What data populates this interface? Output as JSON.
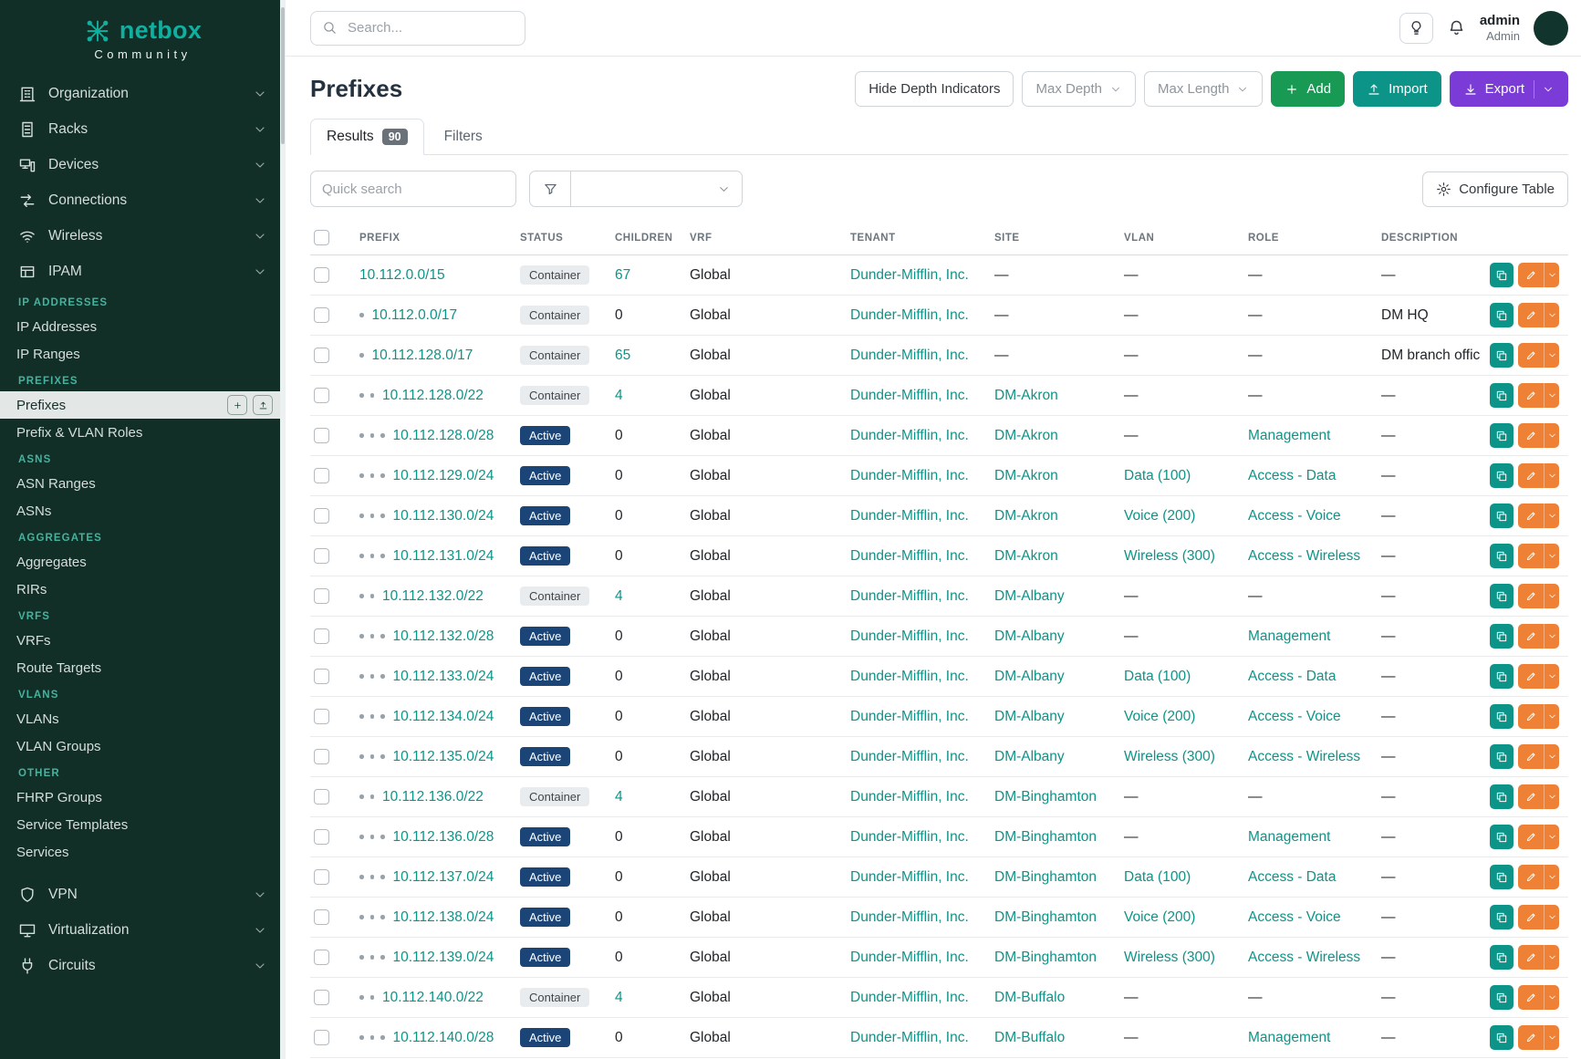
{
  "brand": {
    "name": "netbox",
    "subtitle": "Community"
  },
  "colors": {
    "sidebar_bg": "#112e27",
    "accent_teal": "#0d9488",
    "brand_teal": "#10b0a0",
    "add_green": "#189a54",
    "import_teal": "#0d9488",
    "export_purple": "#7a3bd6",
    "active_badge": "#1b4577",
    "container_badge_bg": "#e9ecef",
    "edit_orange": "#ee8135",
    "section_heading_teal": "#45b39e"
  },
  "topbar": {
    "search_placeholder": "Search...",
    "user": {
      "name": "admin",
      "role": "Admin"
    }
  },
  "sidebar": {
    "top_items": [
      {
        "label": "Organization",
        "icon": "building"
      },
      {
        "label": "Racks",
        "icon": "rack"
      },
      {
        "label": "Devices",
        "icon": "device"
      },
      {
        "label": "Connections",
        "icon": "connections"
      },
      {
        "label": "Wireless",
        "icon": "wifi"
      },
      {
        "label": "IPAM",
        "icon": "ipam"
      }
    ],
    "sections": [
      {
        "heading": "IP ADDRESSES",
        "items": [
          {
            "label": "IP Addresses"
          },
          {
            "label": "IP Ranges"
          }
        ]
      },
      {
        "heading": "PREFIXES",
        "items": [
          {
            "label": "Prefixes",
            "active": true
          },
          {
            "label": "Prefix & VLAN Roles"
          }
        ]
      },
      {
        "heading": "ASNS",
        "items": [
          {
            "label": "ASN Ranges"
          },
          {
            "label": "ASNs"
          }
        ]
      },
      {
        "heading": "AGGREGATES",
        "items": [
          {
            "label": "Aggregates"
          },
          {
            "label": "RIRs"
          }
        ]
      },
      {
        "heading": "VRFS",
        "items": [
          {
            "label": "VRFs"
          },
          {
            "label": "Route Targets"
          }
        ]
      },
      {
        "heading": "VLANS",
        "items": [
          {
            "label": "VLANs"
          },
          {
            "label": "VLAN Groups"
          }
        ]
      },
      {
        "heading": "OTHER",
        "items": [
          {
            "label": "FHRP Groups"
          },
          {
            "label": "Service Templates"
          },
          {
            "label": "Services"
          }
        ]
      }
    ],
    "bottom_items": [
      {
        "label": "VPN",
        "icon": "shield"
      },
      {
        "label": "Virtualization",
        "icon": "monitor"
      },
      {
        "label": "Circuits",
        "icon": "plug"
      }
    ]
  },
  "page": {
    "title": "Prefixes",
    "buttons": {
      "hide_depth": "Hide Depth Indicators",
      "max_depth": "Max Depth",
      "max_length": "Max Length",
      "add": "Add",
      "import": "Import",
      "export": "Export"
    },
    "tabs": [
      {
        "label": "Results",
        "badge": "90"
      },
      {
        "label": "Filters"
      }
    ],
    "quick_search_placeholder": "Quick search",
    "configure_table": "Configure Table"
  },
  "table": {
    "columns": [
      "PREFIX",
      "STATUS",
      "CHILDREN",
      "VRF",
      "TENANT",
      "SITE",
      "VLAN",
      "ROLE",
      "DESCRIPTION"
    ],
    "rows": [
      {
        "depth": 0,
        "prefix": "10.112.0.0/15",
        "status": "Container",
        "children": "67",
        "vrf": "Global",
        "tenant": "Dunder-Mifflin, Inc.",
        "site": "—",
        "vlan": "—",
        "role": "—",
        "description": "—"
      },
      {
        "depth": 1,
        "prefix": "10.112.0.0/17",
        "status": "Container",
        "children": "0",
        "vrf": "Global",
        "tenant": "Dunder-Mifflin, Inc.",
        "site": "—",
        "vlan": "—",
        "role": "—",
        "description": "DM HQ"
      },
      {
        "depth": 1,
        "prefix": "10.112.128.0/17",
        "status": "Container",
        "children": "65",
        "vrf": "Global",
        "tenant": "Dunder-Mifflin, Inc.",
        "site": "—",
        "vlan": "—",
        "role": "—",
        "description": "DM branch offices"
      },
      {
        "depth": 2,
        "prefix": "10.112.128.0/22",
        "status": "Container",
        "children": "4",
        "vrf": "Global",
        "tenant": "Dunder-Mifflin, Inc.",
        "site": "DM-Akron",
        "vlan": "—",
        "role": "—",
        "description": "—"
      },
      {
        "depth": 3,
        "prefix": "10.112.128.0/28",
        "status": "Active",
        "children": "0",
        "vrf": "Global",
        "tenant": "Dunder-Mifflin, Inc.",
        "site": "DM-Akron",
        "vlan": "—",
        "role": "Management",
        "description": "—"
      },
      {
        "depth": 3,
        "prefix": "10.112.129.0/24",
        "status": "Active",
        "children": "0",
        "vrf": "Global",
        "tenant": "Dunder-Mifflin, Inc.",
        "site": "DM-Akron",
        "vlan": "Data (100)",
        "role": "Access - Data",
        "description": "—"
      },
      {
        "depth": 3,
        "prefix": "10.112.130.0/24",
        "status": "Active",
        "children": "0",
        "vrf": "Global",
        "tenant": "Dunder-Mifflin, Inc.",
        "site": "DM-Akron",
        "vlan": "Voice (200)",
        "role": "Access - Voice",
        "description": "—"
      },
      {
        "depth": 3,
        "prefix": "10.112.131.0/24",
        "status": "Active",
        "children": "0",
        "vrf": "Global",
        "tenant": "Dunder-Mifflin, Inc.",
        "site": "DM-Akron",
        "vlan": "Wireless (300)",
        "role": "Access - Wireless",
        "description": "—"
      },
      {
        "depth": 2,
        "prefix": "10.112.132.0/22",
        "status": "Container",
        "children": "4",
        "vrf": "Global",
        "tenant": "Dunder-Mifflin, Inc.",
        "site": "DM-Albany",
        "vlan": "—",
        "role": "—",
        "description": "—"
      },
      {
        "depth": 3,
        "prefix": "10.112.132.0/28",
        "status": "Active",
        "children": "0",
        "vrf": "Global",
        "tenant": "Dunder-Mifflin, Inc.",
        "site": "DM-Albany",
        "vlan": "—",
        "role": "Management",
        "description": "—"
      },
      {
        "depth": 3,
        "prefix": "10.112.133.0/24",
        "status": "Active",
        "children": "0",
        "vrf": "Global",
        "tenant": "Dunder-Mifflin, Inc.",
        "site": "DM-Albany",
        "vlan": "Data (100)",
        "role": "Access - Data",
        "description": "—"
      },
      {
        "depth": 3,
        "prefix": "10.112.134.0/24",
        "status": "Active",
        "children": "0",
        "vrf": "Global",
        "tenant": "Dunder-Mifflin, Inc.",
        "site": "DM-Albany",
        "vlan": "Voice (200)",
        "role": "Access - Voice",
        "description": "—"
      },
      {
        "depth": 3,
        "prefix": "10.112.135.0/24",
        "status": "Active",
        "children": "0",
        "vrf": "Global",
        "tenant": "Dunder-Mifflin, Inc.",
        "site": "DM-Albany",
        "vlan": "Wireless (300)",
        "role": "Access - Wireless",
        "description": "—"
      },
      {
        "depth": 2,
        "prefix": "10.112.136.0/22",
        "status": "Container",
        "children": "4",
        "vrf": "Global",
        "tenant": "Dunder-Mifflin, Inc.",
        "site": "DM-Binghamton",
        "vlan": "—",
        "role": "—",
        "description": "—"
      },
      {
        "depth": 3,
        "prefix": "10.112.136.0/28",
        "status": "Active",
        "children": "0",
        "vrf": "Global",
        "tenant": "Dunder-Mifflin, Inc.",
        "site": "DM-Binghamton",
        "vlan": "—",
        "role": "Management",
        "description": "—"
      },
      {
        "depth": 3,
        "prefix": "10.112.137.0/24",
        "status": "Active",
        "children": "0",
        "vrf": "Global",
        "tenant": "Dunder-Mifflin, Inc.",
        "site": "DM-Binghamton",
        "vlan": "Data (100)",
        "role": "Access - Data",
        "description": "—"
      },
      {
        "depth": 3,
        "prefix": "10.112.138.0/24",
        "status": "Active",
        "children": "0",
        "vrf": "Global",
        "tenant": "Dunder-Mifflin, Inc.",
        "site": "DM-Binghamton",
        "vlan": "Voice (200)",
        "role": "Access - Voice",
        "description": "—"
      },
      {
        "depth": 3,
        "prefix": "10.112.139.0/24",
        "status": "Active",
        "children": "0",
        "vrf": "Global",
        "tenant": "Dunder-Mifflin, Inc.",
        "site": "DM-Binghamton",
        "vlan": "Wireless (300)",
        "role": "Access - Wireless",
        "description": "—"
      },
      {
        "depth": 2,
        "prefix": "10.112.140.0/22",
        "status": "Container",
        "children": "4",
        "vrf": "Global",
        "tenant": "Dunder-Mifflin, Inc.",
        "site": "DM-Buffalo",
        "vlan": "—",
        "role": "—",
        "description": "—"
      },
      {
        "depth": 3,
        "prefix": "10.112.140.0/28",
        "status": "Active",
        "children": "0",
        "vrf": "Global",
        "tenant": "Dunder-Mifflin, Inc.",
        "site": "DM-Buffalo",
        "vlan": "—",
        "role": "Management",
        "description": "—"
      }
    ]
  }
}
